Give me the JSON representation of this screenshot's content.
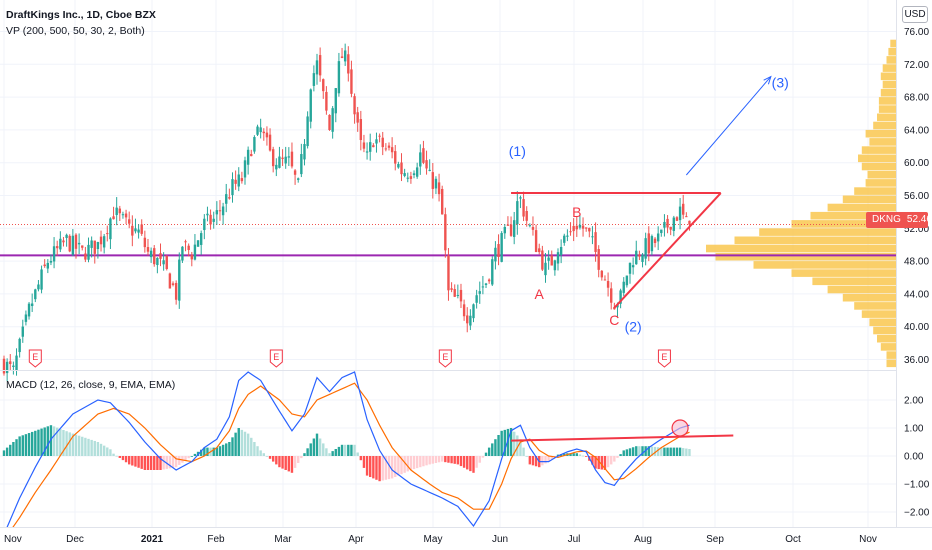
{
  "header": {
    "symbol": "DraftKings Inc., 1D, Cboe BZX",
    "vp_indicator": "VP (200, 500, 50, 30, 2, Both)",
    "macd_indicator": "MACD (12, 26, close, 9, EMA, EMA)",
    "currency": "USD"
  },
  "colors": {
    "up": "#26a69a",
    "down": "#ef5350",
    "volume_profile": "#f9c74f",
    "poc_line": "#9c27b0",
    "trendline": "#f23645",
    "projection": "#2962ff",
    "macd_line": "#2962ff",
    "signal_line": "#ff6d00",
    "hist_up_strong": "#26a69a",
    "hist_up_weak": "#b2dfdb",
    "hist_down_strong": "#ff5252",
    "hist_down_weak": "#ffcdd2"
  },
  "price_badge": {
    "ticker": "DKNG",
    "value": "52.46"
  },
  "earnings_marker": "E",
  "chart_data": [
    {
      "type": "candlestick",
      "title": "DraftKings Inc., 1D, Cboe BZX",
      "x_ticks": [
        "Nov",
        "Dec",
        "2021",
        "Feb",
        "Mar",
        "Apr",
        "May",
        "Jun",
        "Jul",
        "Aug",
        "Sep",
        "Oct",
        "Nov"
      ],
      "y_ticks": [
        "36.00",
        "40.00",
        "44.00",
        "48.00",
        "52.00",
        "56.00",
        "60.00",
        "64.00",
        "68.00",
        "72.00",
        "76.00"
      ],
      "ylim": [
        34.5,
        77.5
      ],
      "x_unit": "trading days from start (x = 0 is 2 Nov 2020)",
      "key_prices": [
        [
          0,
          35.5
        ],
        [
          3,
          34.5
        ],
        [
          8,
          42
        ],
        [
          14,
          48
        ],
        [
          20,
          50.5
        ],
        [
          25,
          49
        ],
        [
          30,
          50
        ],
        [
          35,
          54
        ],
        [
          40,
          52
        ],
        [
          43,
          51.5
        ],
        [
          46,
          49
        ],
        [
          49,
          48
        ],
        [
          52,
          46.5
        ],
        [
          55,
          44
        ],
        [
          57,
          50
        ],
        [
          60,
          49
        ],
        [
          64,
          52.5
        ],
        [
          67,
          53
        ],
        [
          70,
          55
        ],
        [
          73,
          57
        ],
        [
          76,
          58
        ],
        [
          79,
          62
        ],
        [
          82,
          64
        ],
        [
          85,
          61
        ],
        [
          88,
          60
        ],
        [
          91,
          60
        ],
        [
          94,
          57
        ],
        [
          96,
          63
        ],
        [
          98,
          70
        ],
        [
          100,
          72
        ],
        [
          102,
          68
        ],
        [
          104,
          64
        ],
        [
          106,
          70
        ],
        [
          108,
          73
        ],
        [
          110,
          72
        ],
        [
          112,
          66
        ],
        [
          114,
          62
        ],
        [
          116,
          60.5
        ],
        [
          118,
          63
        ],
        [
          121,
          62
        ],
        [
          124,
          61
        ],
        [
          127,
          59
        ],
        [
          130,
          59
        ],
        [
          133,
          61
        ],
        [
          136,
          58
        ],
        [
          138,
          57.5
        ],
        [
          140,
          53.5
        ],
        [
          142,
          44
        ],
        [
          145,
          43
        ],
        [
          148,
          41.5
        ],
        [
          151,
          44
        ],
        [
          154,
          45.5
        ],
        [
          157,
          49
        ],
        [
          160,
          51
        ],
        [
          162,
          52
        ],
        [
          164,
          55
        ],
        [
          165,
          55.5
        ],
        [
          167,
          53
        ],
        [
          169,
          51
        ],
        [
          171,
          49
        ],
        [
          173,
          47
        ],
        [
          175,
          48
        ],
        [
          177,
          50
        ],
        [
          180,
          51
        ],
        [
          183,
          52.5
        ],
        [
          185,
          52
        ],
        [
          187,
          51
        ],
        [
          190,
          48
        ],
        [
          193,
          45
        ],
        [
          195,
          43
        ],
        [
          197,
          43.5
        ],
        [
          199,
          46.5
        ],
        [
          201,
          48.5
        ],
        [
          204,
          49.5
        ],
        [
          207,
          50
        ],
        [
          210,
          51
        ],
        [
          213,
          53
        ],
        [
          216,
          54
        ],
        [
          218,
          52.5
        ],
        [
          219,
          52.46
        ]
      ],
      "volume_profile": {
        "side": "right",
        "bins_price": [
          [
            35.5,
            0.05
          ],
          [
            36.5,
            0.05
          ],
          [
            37.5,
            0.08
          ],
          [
            38.5,
            0.1
          ],
          [
            39.5,
            0.12
          ],
          [
            40.5,
            0.14
          ],
          [
            41.5,
            0.18
          ],
          [
            42.5,
            0.22
          ],
          [
            43.5,
            0.28
          ],
          [
            44.5,
            0.36
          ],
          [
            45.5,
            0.44
          ],
          [
            46.5,
            0.55
          ],
          [
            47.5,
            0.75
          ],
          [
            48.5,
            0.95
          ],
          [
            49.5,
            1.0
          ],
          [
            50.5,
            0.85
          ],
          [
            51.5,
            0.72
          ],
          [
            52.5,
            0.55
          ],
          [
            53.5,
            0.45
          ],
          [
            54.5,
            0.36
          ],
          [
            55.5,
            0.28
          ],
          [
            56.5,
            0.22
          ],
          [
            57.5,
            0.16
          ],
          [
            58.5,
            0.15
          ],
          [
            59.5,
            0.18
          ],
          [
            60.5,
            0.2
          ],
          [
            61.5,
            0.18
          ],
          [
            62.5,
            0.14
          ],
          [
            63.5,
            0.16
          ],
          [
            64.5,
            0.12
          ],
          [
            65.5,
            0.1
          ],
          [
            66.5,
            0.09
          ],
          [
            67.5,
            0.09
          ],
          [
            68.5,
            0.08
          ],
          [
            69.5,
            0.07
          ],
          [
            70.5,
            0.08
          ],
          [
            71.5,
            0.07
          ],
          [
            72.5,
            0.05
          ],
          [
            73.5,
            0.04
          ],
          [
            74.5,
            0.03
          ]
        ]
      },
      "poc_price": 48.7,
      "last_price": 52.46,
      "annotations": [
        {
          "label": "(1)",
          "price": 60.8,
          "day": 164,
          "color": "#2962ff"
        },
        {
          "label": "B",
          "price": 53.4,
          "day": 183,
          "color": "#f23645"
        },
        {
          "label": "A",
          "price": 43.4,
          "day": 171,
          "color": "#f23645"
        },
        {
          "label": "C",
          "price": 40.2,
          "day": 195,
          "color": "#f23645"
        },
        {
          "label": "(2)",
          "price": 39.4,
          "day": 201,
          "color": "#2962ff"
        },
        {
          "label": "(3)",
          "price": 69.2,
          "day": 248,
          "color": "#2962ff"
        }
      ],
      "trendlines": [
        {
          "from": [
            162,
            56.3
          ],
          "to": [
            229,
            56.3
          ],
          "color": "#f23645"
        },
        {
          "from": [
            195,
            42.3
          ],
          "to": [
            229,
            56.3
          ],
          "color": "#f23645"
        },
        {
          "from": [
            218,
            58.5
          ],
          "to": [
            245,
            70.5
          ],
          "color": "#2962ff",
          "arrow": true
        }
      ],
      "earnings_days": [
        10,
        87,
        141,
        211
      ]
    },
    {
      "type": "macd",
      "title": "MACD (12, 26, close, 9, EMA, EMA)",
      "y_ticks": [
        "2.00",
        "1.00",
        "0.00",
        "−1.00",
        "−2.00"
      ],
      "ylim": [
        -2.5,
        2.95
      ],
      "macd_keypoints": [
        [
          0,
          -2.8
        ],
        [
          5,
          -1.5
        ],
        [
          10,
          -0.4
        ],
        [
          15,
          0.6
        ],
        [
          22,
          1.5
        ],
        [
          30,
          2.0
        ],
        [
          34,
          1.9
        ],
        [
          40,
          1.2
        ],
        [
          45,
          0.5
        ],
        [
          50,
          -0.1
        ],
        [
          55,
          -0.5
        ],
        [
          60,
          -0.2
        ],
        [
          64,
          0.3
        ],
        [
          68,
          0.6
        ],
        [
          72,
          1.4
        ],
        [
          75,
          2.7
        ],
        [
          78,
          3.0
        ],
        [
          82,
          2.7
        ],
        [
          88,
          1.6
        ],
        [
          92,
          0.9
        ],
        [
          96,
          1.5
        ],
        [
          100,
          2.8
        ],
        [
          104,
          2.3
        ],
        [
          108,
          2.8
        ],
        [
          112,
          3.0
        ],
        [
          116,
          1.3
        ],
        [
          120,
          0.2
        ],
        [
          124,
          -0.5
        ],
        [
          130,
          -1.0
        ],
        [
          136,
          -1.3
        ],
        [
          140,
          -1.5
        ],
        [
          145,
          -1.8
        ],
        [
          150,
          -2.5
        ],
        [
          155,
          -1.6
        ],
        [
          159,
          -0.1
        ],
        [
          162,
          0.9
        ],
        [
          165,
          1.1
        ],
        [
          168,
          0.3
        ],
        [
          171,
          -0.2
        ],
        [
          174,
          -0.2
        ],
        [
          177,
          0.0
        ],
        [
          180,
          0.15
        ],
        [
          183,
          0.25
        ],
        [
          186,
          0.15
        ],
        [
          189,
          -0.5
        ],
        [
          192,
          -0.95
        ],
        [
          195,
          -1.05
        ],
        [
          198,
          -0.6
        ],
        [
          202,
          -0.1
        ],
        [
          206,
          0.3
        ],
        [
          210,
          0.6
        ],
        [
          213,
          0.8
        ],
        [
          216,
          1.0
        ],
        [
          219,
          1.1
        ]
      ],
      "signal_keypoints": [
        [
          0,
          -3.0
        ],
        [
          5,
          -2.2
        ],
        [
          10,
          -1.3
        ],
        [
          15,
          -0.5
        ],
        [
          22,
          0.7
        ],
        [
          30,
          1.5
        ],
        [
          35,
          1.7
        ],
        [
          40,
          1.5
        ],
        [
          45,
          1.0
        ],
        [
          50,
          0.4
        ],
        [
          55,
          -0.1
        ],
        [
          60,
          -0.2
        ],
        [
          64,
          0.0
        ],
        [
          68,
          0.3
        ],
        [
          72,
          0.9
        ],
        [
          75,
          1.7
        ],
        [
          78,
          2.2
        ],
        [
          82,
          2.5
        ],
        [
          88,
          2.0
        ],
        [
          92,
          1.5
        ],
        [
          96,
          1.4
        ],
        [
          100,
          2.0
        ],
        [
          104,
          2.2
        ],
        [
          108,
          2.4
        ],
        [
          112,
          2.6
        ],
        [
          116,
          2.0
        ],
        [
          120,
          1.1
        ],
        [
          124,
          0.3
        ],
        [
          130,
          -0.5
        ],
        [
          136,
          -1.0
        ],
        [
          140,
          -1.3
        ],
        [
          145,
          -1.5
        ],
        [
          150,
          -1.9
        ],
        [
          155,
          -1.9
        ],
        [
          159,
          -1.0
        ],
        [
          162,
          -0.1
        ],
        [
          165,
          0.5
        ],
        [
          168,
          0.6
        ],
        [
          171,
          0.2
        ],
        [
          174,
          0.0
        ],
        [
          177,
          -0.05
        ],
        [
          180,
          0.05
        ],
        [
          183,
          0.15
        ],
        [
          186,
          0.18
        ],
        [
          189,
          -0.05
        ],
        [
          192,
          -0.45
        ],
        [
          195,
          -0.85
        ],
        [
          198,
          -0.8
        ],
        [
          202,
          -0.45
        ],
        [
          206,
          -0.05
        ],
        [
          210,
          0.3
        ],
        [
          213,
          0.5
        ],
        [
          216,
          0.7
        ],
        [
          219,
          0.85
        ]
      ],
      "annotations": [
        {
          "type": "line",
          "from": [
            162,
            0.55
          ],
          "to": [
            233,
            0.73
          ],
          "color": "#f23645"
        },
        {
          "type": "circle",
          "center": [
            216,
            1.0
          ],
          "color": "#f23645"
        }
      ]
    }
  ]
}
